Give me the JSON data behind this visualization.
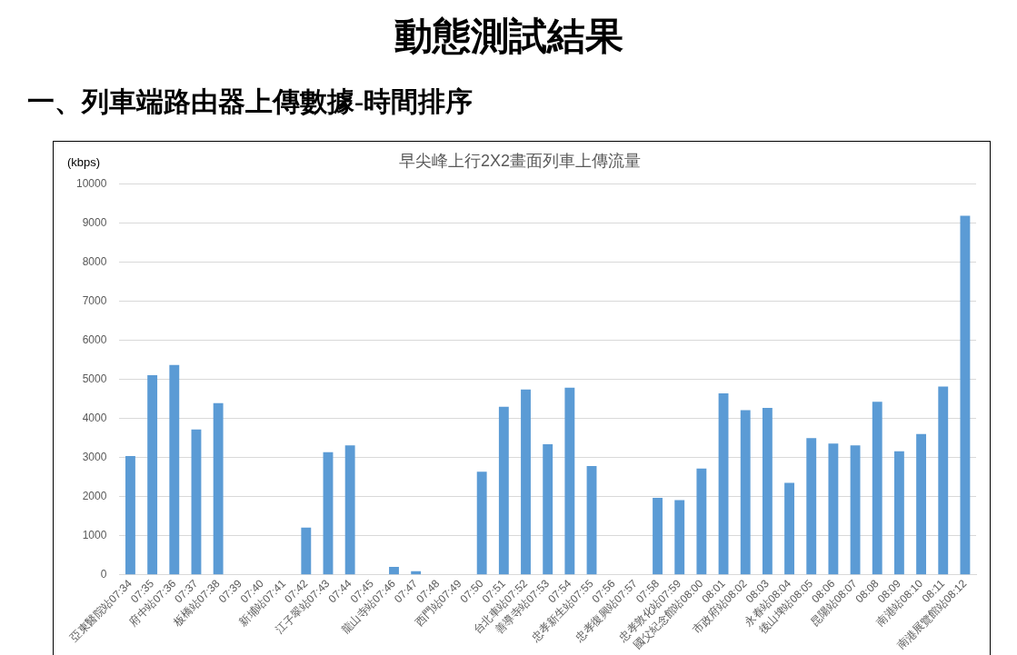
{
  "chart_data": {
    "type": "bar",
    "title": "早尖峰上行2X2畫面列車上傳流量",
    "ylabel": "(kbps)",
    "annotations": [
      "動態測試結果",
      "一、列車端路由器上傳數據-時間排序"
    ],
    "categories": [
      "亞東醫院站07:34",
      "07:35",
      "府中站07:36",
      "07:37",
      "板橋站07:38",
      "07:39",
      "07:40",
      "新埔站07:41",
      "07:42",
      "江子翠站07:43",
      "07:44",
      "07:45",
      "龍山寺站07:46",
      "07:47",
      "07:48",
      "西門站07:49",
      "07:50",
      "07:51",
      "台北車站07:52",
      "善導寺站07:53",
      "07:54",
      "忠孝新生站07:55",
      "07:56",
      "忠孝復興站07:57",
      "07:58",
      "忠孝敦化站07:59",
      "國父紀念館站08:00",
      "08:01",
      "市政府站08:02",
      "08:03",
      "永春站08:04",
      "後山埤站08:05",
      "08:06",
      "昆陽站08:07",
      "08:08",
      "08:09",
      "南港站08:10",
      "08:11",
      "南港展覽館站08:12"
    ],
    "values": [
      3040,
      5110,
      5370,
      3720,
      4390,
      0,
      0,
      0,
      1210,
      3140,
      3310,
      0,
      200,
      90,
      0,
      0,
      2640,
      4300,
      4740,
      3340,
      4790,
      2780,
      0,
      0,
      1970,
      1910,
      2720,
      4640,
      4210,
      4270,
      2350,
      3500,
      3360,
      3310,
      4430,
      3160,
      3600,
      4820,
      9190
    ],
    "color": "#5b9bd5",
    "ylim": [
      0,
      10000
    ],
    "yticks": [
      0,
      1000,
      2000,
      3000,
      4000,
      5000,
      6000,
      7000,
      8000,
      9000,
      10000
    ],
    "grid": "y"
  }
}
